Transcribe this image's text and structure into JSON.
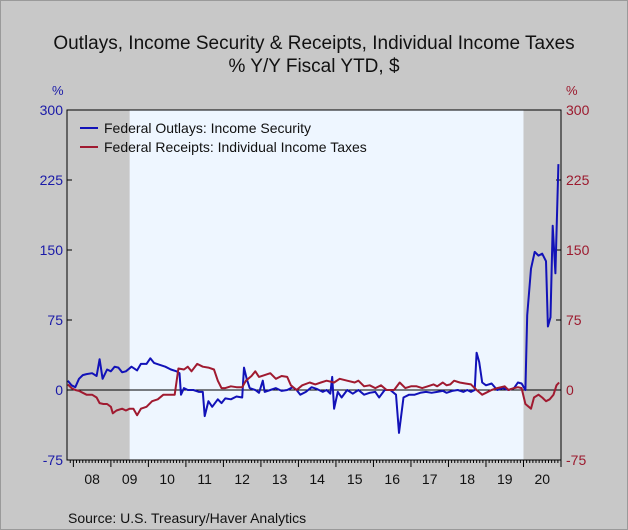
{
  "title_line1": "Outlays, Income Security & Receipts, Individual Income Taxes",
  "title_line2": "% Y/Y   Fiscal YTD, $",
  "left_unit": "%",
  "right_unit": "%",
  "source": "Source:  U.S. Treasury/Haver Analytics",
  "colors": {
    "outlays": "#1212b8",
    "receipts": "#a01a30",
    "plot_bg": "#eef6ff",
    "recession": "#c8c8c8",
    "left_axis": "#1a1aa8",
    "right_axis": "#9c1a2e"
  },
  "chart_data": {
    "type": "line",
    "x_unit": "year (fiscal, decimal)",
    "xlim": [
      2007.83,
      2021.0
    ],
    "ylim": [
      -75,
      300
    ],
    "y_ticks_left": [
      "300",
      "225",
      "150",
      "75",
      "0",
      "-75"
    ],
    "y_ticks_right": [
      "300",
      "225",
      "150",
      "75",
      "0",
      "-75"
    ],
    "y_tick_values": [
      300,
      225,
      150,
      75,
      0,
      -75
    ],
    "x_tick_labels": [
      "08",
      "09",
      "10",
      "11",
      "12",
      "13",
      "14",
      "15",
      "16",
      "17",
      "18",
      "19",
      "20"
    ],
    "x_tick_label_years": [
      2008.5,
      2009.5,
      2010.5,
      2011.5,
      2012.5,
      2013.5,
      2014.5,
      2015.5,
      2016.5,
      2017.5,
      2018.5,
      2019.5,
      2020.5
    ],
    "recession_shading": [
      [
        2007.83,
        2009.5
      ],
      [
        2020.0,
        2021.0
      ]
    ],
    "legend_position": "top-left",
    "series": [
      {
        "name": "Federal Outlays: Income Security",
        "axis": "left",
        "points": [
          [
            2007.85,
            10
          ],
          [
            2007.95,
            5
          ],
          [
            2008.05,
            3
          ],
          [
            2008.15,
            12
          ],
          [
            2008.25,
            16
          ],
          [
            2008.35,
            17
          ],
          [
            2008.5,
            18
          ],
          [
            2008.62,
            15
          ],
          [
            2008.7,
            33
          ],
          [
            2008.78,
            12
          ],
          [
            2008.9,
            22
          ],
          [
            2009.0,
            20
          ],
          [
            2009.1,
            25
          ],
          [
            2009.2,
            24
          ],
          [
            2009.3,
            19
          ],
          [
            2009.4,
            20
          ],
          [
            2009.55,
            25
          ],
          [
            2009.7,
            21
          ],
          [
            2009.8,
            28
          ],
          [
            2009.95,
            28
          ],
          [
            2010.05,
            34
          ],
          [
            2010.15,
            29
          ],
          [
            2010.3,
            27
          ],
          [
            2010.45,
            25
          ],
          [
            2010.6,
            22
          ],
          [
            2010.75,
            20
          ],
          [
            2010.83,
            18
          ],
          [
            2010.87,
            -5
          ],
          [
            2010.95,
            2
          ],
          [
            2011.05,
            0
          ],
          [
            2011.2,
            0
          ],
          [
            2011.35,
            -2
          ],
          [
            2011.45,
            -2
          ],
          [
            2011.5,
            -28
          ],
          [
            2011.6,
            -12
          ],
          [
            2011.7,
            -18
          ],
          [
            2011.85,
            -10
          ],
          [
            2011.95,
            -14
          ],
          [
            2012.05,
            -9
          ],
          [
            2012.2,
            -10
          ],
          [
            2012.35,
            -7
          ],
          [
            2012.5,
            -8
          ],
          [
            2012.55,
            24
          ],
          [
            2012.62,
            12
          ],
          [
            2012.7,
            2
          ],
          [
            2012.85,
            0
          ],
          [
            2012.95,
            -3
          ],
          [
            2013.05,
            10
          ],
          [
            2013.1,
            -2
          ],
          [
            2013.25,
            0
          ],
          [
            2013.4,
            2
          ],
          [
            2013.55,
            -1
          ],
          [
            2013.7,
            0
          ],
          [
            2013.85,
            3
          ],
          [
            2013.95,
            0
          ],
          [
            2014.05,
            -5
          ],
          [
            2014.2,
            -2
          ],
          [
            2014.35,
            3
          ],
          [
            2014.5,
            1
          ],
          [
            2014.65,
            -2
          ],
          [
            2014.75,
            0
          ],
          [
            2014.85,
            -4
          ],
          [
            2014.9,
            14
          ],
          [
            2014.95,
            -20
          ],
          [
            2015.05,
            -2
          ],
          [
            2015.15,
            -8
          ],
          [
            2015.3,
            0
          ],
          [
            2015.45,
            -4
          ],
          [
            2015.6,
            0
          ],
          [
            2015.75,
            -5
          ],
          [
            2015.9,
            -3
          ],
          [
            2016.05,
            -2
          ],
          [
            2016.15,
            -8
          ],
          [
            2016.3,
            0
          ],
          [
            2016.45,
            0
          ],
          [
            2016.6,
            -5
          ],
          [
            2016.68,
            -46
          ],
          [
            2016.8,
            -8
          ],
          [
            2016.95,
            -5
          ],
          [
            2017.1,
            -5
          ],
          [
            2017.25,
            -3
          ],
          [
            2017.4,
            -2
          ],
          [
            2017.55,
            -3
          ],
          [
            2017.7,
            -2
          ],
          [
            2017.85,
            -1
          ],
          [
            2017.95,
            -3
          ],
          [
            2018.1,
            -1
          ],
          [
            2018.25,
            0
          ],
          [
            2018.4,
            -2
          ],
          [
            2018.5,
            0
          ],
          [
            2018.6,
            -2
          ],
          [
            2018.7,
            0
          ],
          [
            2018.75,
            40
          ],
          [
            2018.82,
            30
          ],
          [
            2018.9,
            8
          ],
          [
            2019.0,
            5
          ],
          [
            2019.15,
            7
          ],
          [
            2019.3,
            0
          ],
          [
            2019.45,
            2
          ],
          [
            2019.6,
            0
          ],
          [
            2019.75,
            2
          ],
          [
            2019.85,
            8
          ],
          [
            2019.95,
            7
          ],
          [
            2020.05,
            0
          ],
          [
            2020.1,
            80
          ],
          [
            2020.2,
            130
          ],
          [
            2020.3,
            148
          ],
          [
            2020.4,
            144
          ],
          [
            2020.5,
            146
          ],
          [
            2020.6,
            138
          ],
          [
            2020.65,
            68
          ],
          [
            2020.72,
            78
          ],
          [
            2020.78,
            176
          ],
          [
            2020.85,
            125
          ],
          [
            2020.93,
            242
          ]
        ]
      },
      {
        "name": "Federal Receipts: Individual Income Taxes",
        "axis": "right",
        "points": [
          [
            2007.85,
            6
          ],
          [
            2007.95,
            2
          ],
          [
            2008.05,
            0
          ],
          [
            2008.15,
            -1
          ],
          [
            2008.25,
            -3
          ],
          [
            2008.35,
            -5
          ],
          [
            2008.5,
            -5
          ],
          [
            2008.62,
            -8
          ],
          [
            2008.7,
            -14
          ],
          [
            2008.8,
            -15
          ],
          [
            2008.9,
            -15
          ],
          [
            2009.0,
            -18
          ],
          [
            2009.05,
            -25
          ],
          [
            2009.15,
            -22
          ],
          [
            2009.3,
            -20
          ],
          [
            2009.4,
            -22
          ],
          [
            2009.5,
            -20
          ],
          [
            2009.6,
            -20
          ],
          [
            2009.7,
            -27
          ],
          [
            2009.8,
            -20
          ],
          [
            2009.95,
            -18
          ],
          [
            2010.1,
            -12
          ],
          [
            2010.25,
            -10
          ],
          [
            2010.4,
            -5
          ],
          [
            2010.55,
            -5
          ],
          [
            2010.7,
            -5
          ],
          [
            2010.8,
            23
          ],
          [
            2010.95,
            22
          ],
          [
            2011.05,
            25
          ],
          [
            2011.15,
            20
          ],
          [
            2011.3,
            28
          ],
          [
            2011.45,
            25
          ],
          [
            2011.6,
            24
          ],
          [
            2011.75,
            22
          ],
          [
            2011.85,
            10
          ],
          [
            2011.95,
            2
          ],
          [
            2012.05,
            2
          ],
          [
            2012.2,
            4
          ],
          [
            2012.35,
            3
          ],
          [
            2012.5,
            3
          ],
          [
            2012.6,
            10
          ],
          [
            2012.75,
            15
          ],
          [
            2012.85,
            20
          ],
          [
            2012.95,
            14
          ],
          [
            2013.1,
            16
          ],
          [
            2013.25,
            18
          ],
          [
            2013.4,
            12
          ],
          [
            2013.55,
            15
          ],
          [
            2013.7,
            14
          ],
          [
            2013.8,
            5
          ],
          [
            2013.95,
            0
          ],
          [
            2014.1,
            5
          ],
          [
            2014.3,
            8
          ],
          [
            2014.45,
            6
          ],
          [
            2014.6,
            8
          ],
          [
            2014.75,
            10
          ],
          [
            2014.95,
            8
          ],
          [
            2015.1,
            12
          ],
          [
            2015.3,
            10
          ],
          [
            2015.5,
            8
          ],
          [
            2015.6,
            10
          ],
          [
            2015.75,
            4
          ],
          [
            2015.9,
            5
          ],
          [
            2016.05,
            2
          ],
          [
            2016.2,
            5
          ],
          [
            2016.35,
            0
          ],
          [
            2016.55,
            0
          ],
          [
            2016.7,
            8
          ],
          [
            2016.85,
            2
          ],
          [
            2017.0,
            4
          ],
          [
            2017.15,
            4
          ],
          [
            2017.3,
            2
          ],
          [
            2017.45,
            4
          ],
          [
            2017.6,
            6
          ],
          [
            2017.7,
            4
          ],
          [
            2017.85,
            8
          ],
          [
            2017.95,
            5
          ],
          [
            2018.05,
            6
          ],
          [
            2018.15,
            10
          ],
          [
            2018.3,
            8
          ],
          [
            2018.45,
            7
          ],
          [
            2018.6,
            6
          ],
          [
            2018.75,
            0
          ],
          [
            2018.9,
            -5
          ],
          [
            2019.0,
            -3
          ],
          [
            2019.15,
            0
          ],
          [
            2019.3,
            2
          ],
          [
            2019.5,
            4
          ],
          [
            2019.6,
            0
          ],
          [
            2019.75,
            2
          ],
          [
            2019.85,
            3
          ],
          [
            2019.95,
            2
          ],
          [
            2020.05,
            -15
          ],
          [
            2020.2,
            -20
          ],
          [
            2020.28,
            -8
          ],
          [
            2020.4,
            -5
          ],
          [
            2020.5,
            -8
          ],
          [
            2020.6,
            -12
          ],
          [
            2020.7,
            -10
          ],
          [
            2020.8,
            -5
          ],
          [
            2020.88,
            5
          ],
          [
            2020.95,
            8
          ]
        ]
      }
    ]
  }
}
